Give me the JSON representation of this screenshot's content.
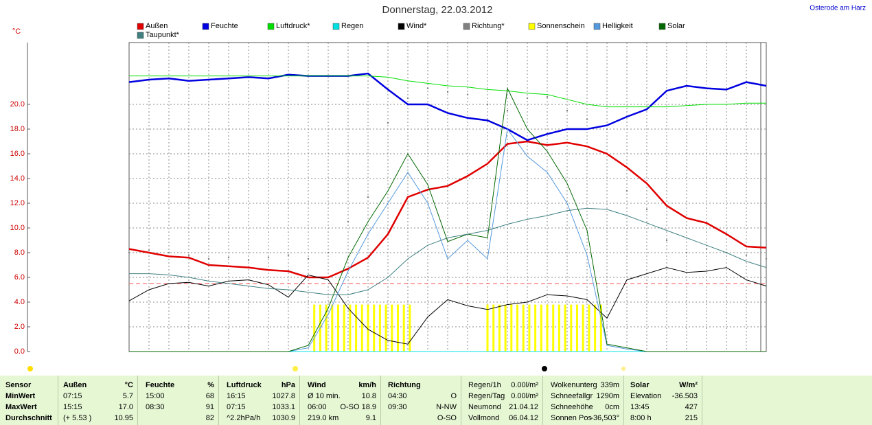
{
  "chart_data": {
    "type": "line",
    "title": "Donnerstag, 22.03.2012",
    "y_label": "°C",
    "link": "Osterode am Harz",
    "ylim": [
      0,
      25
    ],
    "xlim": [
      0,
      32
    ],
    "grid": true,
    "yticks": [
      {
        "value": 0,
        "label": "0.0"
      },
      {
        "value": 2,
        "label": "2.0"
      },
      {
        "value": 4,
        "label": "4.0"
      },
      {
        "value": 6,
        "label": "6.0"
      },
      {
        "value": 8,
        "label": "8.0"
      },
      {
        "value": 10,
        "label": "10.0"
      },
      {
        "value": 12,
        "label": "12.0"
      },
      {
        "value": 14,
        "label": "14.0"
      },
      {
        "value": 16,
        "label": "16.0"
      },
      {
        "value": 18,
        "label": "18.0"
      },
      {
        "value": 20,
        "label": "20.0"
      }
    ],
    "reference_line": {
      "value": 5.5,
      "color": "#ff5050"
    },
    "x": [
      0,
      1,
      2,
      3,
      4,
      5,
      6,
      7,
      8,
      9,
      10,
      11,
      12,
      13,
      14,
      15,
      16,
      17,
      18,
      19,
      20,
      21,
      22,
      23,
      24,
      25,
      26,
      27,
      28,
      29,
      30,
      31,
      32
    ],
    "series": [
      {
        "name": "Außen",
        "color": "#e00000",
        "mark": "line",
        "bold": true,
        "values": [
          8.3,
          8.0,
          7.7,
          7.6,
          7.0,
          6.9,
          6.8,
          6.6,
          6.5,
          6.0,
          6.0,
          6.7,
          7.6,
          9.5,
          12.5,
          13.1,
          13.4,
          14.2,
          15.2,
          16.8,
          17.0,
          16.7,
          16.9,
          16.6,
          16.0,
          14.9,
          13.6,
          11.8,
          10.8,
          10.4,
          9.5,
          8.5,
          8.4
        ]
      },
      {
        "name": "Feuchte",
        "color": "#0000e0",
        "mark": "line",
        "bold": true,
        "values": [
          21.8,
          22.0,
          22.1,
          21.9,
          22.0,
          22.1,
          22.2,
          22.1,
          22.4,
          22.3,
          22.3,
          22.3,
          22.5,
          21.2,
          20.0,
          20.0,
          19.3,
          18.9,
          18.7,
          18.0,
          17.1,
          17.6,
          18.0,
          18.0,
          18.3,
          19.0,
          19.6,
          21.1,
          21.5,
          21.3,
          21.2,
          21.8,
          21.5
        ]
      },
      {
        "name": "Luftdruck*",
        "color": "#00dd00",
        "mark": "line",
        "values": [
          22.3,
          22.3,
          22.3,
          22.3,
          22.3,
          22.3,
          22.3,
          22.3,
          22.3,
          22.3,
          22.3,
          22.3,
          22.3,
          22.2,
          21.9,
          21.7,
          21.5,
          21.4,
          21.2,
          21.1,
          20.9,
          20.8,
          20.4,
          20.0,
          19.8,
          19.8,
          19.8,
          19.8,
          19.9,
          20.0,
          20.0,
          20.1,
          20.1
        ]
      },
      {
        "name": "Regen",
        "color": "#00e0e0",
        "mark": "line",
        "values": [
          0,
          0,
          0,
          0,
          0,
          0,
          0,
          0,
          0,
          0,
          0,
          0,
          0,
          0,
          0,
          0,
          0,
          0,
          0,
          0,
          0,
          0,
          0,
          0,
          0,
          0,
          0,
          0,
          0,
          0,
          0,
          0,
          0
        ]
      },
      {
        "name": "Wind*",
        "color": "#000000",
        "mark": "line",
        "values": [
          4.1,
          5.0,
          5.5,
          5.6,
          5.3,
          5.7,
          5.8,
          5.4,
          4.4,
          6.2,
          5.8,
          3.5,
          1.8,
          0.9,
          0.6,
          2.8,
          4.2,
          3.7,
          3.4,
          3.8,
          4.0,
          4.6,
          4.5,
          4.2,
          2.7,
          5.8,
          6.3,
          6.8,
          6.4,
          6.5,
          6.8,
          5.8,
          5.3
        ]
      },
      {
        "name": "Richtung*",
        "color": "#808080",
        "mark": "dots",
        "values": [
          8.0,
          8.2,
          8.0,
          7.8,
          7.5,
          7.6,
          7.4,
          7.6,
          7.8,
          7.5,
          8.0,
          10.5,
          12.5,
          18.5,
          20.5,
          21.3,
          21.0,
          20.8,
          20.0,
          19.5,
          20.5,
          20.6,
          19.5,
          18.8,
          18.0,
          13.0,
          11.5,
          9.0,
          8.0,
          8.3,
          8.0,
          7.8,
          7.5
        ]
      },
      {
        "name": "Sonnenschein",
        "color": "#ffff00",
        "mark": "bars",
        "x": [
          9.3,
          9.6,
          9.9,
          10.2,
          10.5,
          10.8,
          11.1,
          11.4,
          11.7,
          12.0,
          12.3,
          12.6,
          12.9,
          13.2,
          13.5,
          13.8,
          14.1,
          18.0,
          18.3,
          18.6,
          18.9,
          19.2,
          19.5,
          19.8,
          20.1,
          20.4,
          20.7,
          21.0,
          21.3,
          21.6,
          21.9,
          22.2,
          22.5,
          22.8,
          23.1,
          23.4,
          23.7
        ],
        "values": [
          3.8,
          3.8,
          3.8,
          3.8,
          3.8,
          3.8,
          3.8,
          3.8,
          3.8,
          3.8,
          3.8,
          3.8,
          3.8,
          3.8,
          3.8,
          3.8,
          3.8,
          3.8,
          3.8,
          3.8,
          3.8,
          3.8,
          3.8,
          3.8,
          3.8,
          3.8,
          3.8,
          3.8,
          3.8,
          3.8,
          3.8,
          3.8,
          3.8,
          3.8,
          3.8,
          3.8,
          3.8
        ]
      },
      {
        "name": "Helligkeit",
        "color": "#5599dd",
        "mark": "line",
        "values": [
          0,
          0,
          0,
          0,
          0,
          0,
          0,
          0,
          0,
          0.3,
          3.0,
          6.5,
          9.5,
          12.0,
          14.5,
          12.0,
          7.5,
          9.0,
          7.5,
          18.0,
          15.8,
          14.5,
          12.0,
          7.8,
          0.5,
          0.2,
          0,
          0,
          0,
          0,
          0,
          0,
          0
        ]
      },
      {
        "name": "Solar",
        "color": "#006600",
        "mark": "line",
        "values": [
          0,
          0,
          0,
          0,
          0,
          0,
          0,
          0,
          0,
          0.5,
          3.5,
          7.6,
          10.5,
          13.0,
          16.0,
          13.5,
          8.9,
          9.5,
          9.2,
          21.3,
          18.0,
          16.2,
          13.6,
          9.8,
          0.6,
          0.3,
          0,
          0,
          0,
          0,
          0,
          0,
          0
        ]
      },
      {
        "name": "Taupunkt*",
        "color": "#408080",
        "mark": "line",
        "values": [
          6.3,
          6.3,
          6.2,
          6.0,
          5.7,
          5.5,
          5.3,
          5.1,
          5.0,
          4.8,
          4.6,
          4.6,
          5.0,
          6.0,
          7.5,
          8.6,
          9.2,
          9.5,
          9.8,
          10.3,
          10.7,
          11.0,
          11.4,
          11.6,
          11.5,
          11.0,
          10.4,
          9.8,
          9.2,
          8.6,
          8.0,
          7.3,
          6.8
        ]
      }
    ]
  },
  "table": {
    "groups": [
      {
        "rows": [
          {
            "left": "Sensor"
          },
          {
            "left": "MinWert"
          },
          {
            "left": "MaxWert"
          },
          {
            "left": "Durchschnitt"
          }
        ]
      },
      {
        "header": {
          "left": "Außen",
          "right": "°C"
        },
        "rows": [
          {
            "left": "07:15",
            "right": "5.7"
          },
          {
            "left": "15:15",
            "right": "17.0"
          },
          {
            "left": "(+ 5.53 )",
            "right": "10.95"
          }
        ]
      },
      {
        "header": {
          "left": "Feuchte",
          "right": "%"
        },
        "rows": [
          {
            "left": "15:00",
            "right": "68"
          },
          {
            "left": "08:30",
            "right": "91"
          },
          {
            "right": "82"
          }
        ]
      },
      {
        "header": {
          "left": "Luftdruck",
          "right": "hPa"
        },
        "rows": [
          {
            "left": "16:15",
            "right": "1027.8"
          },
          {
            "left": "07:15",
            "right": "1033.1"
          },
          {
            "left": "^2.2hPa/h",
            "right": "1030.9"
          }
        ]
      },
      {
        "header": {
          "left": "Wind",
          "right": "km/h"
        },
        "rows": [
          {
            "left": "Ø 10 min.",
            "right": "10.8"
          },
          {
            "left": "06:00",
            "right": "O-SO 18.9"
          },
          {
            "left": "219.0 km",
            "right": "9.1"
          }
        ]
      },
      {
        "header": {
          "left": "Richtung"
        },
        "rows": [
          {
            "left": "04:30",
            "right": "O"
          },
          {
            "left": "09:30",
            "right": "N-NW"
          },
          {
            "right": "O-SO"
          }
        ]
      },
      {
        "rows": [
          {
            "left": "Regen/1h",
            "right": "0.00l/m²"
          },
          {
            "left": "Regen/Tag",
            "right": "0.00l/m²"
          },
          {
            "left": "Neumond",
            "right": "21.04.12"
          },
          {
            "left": "Vollmond",
            "right": "06.04.12"
          }
        ]
      },
      {
        "rows": [
          {
            "left": "Wolkenunterg",
            "right": "339m"
          },
          {
            "left": "Schneefallgr",
            "right": "1290m"
          },
          {
            "left": "Schneehöhe",
            "right": "0cm"
          },
          {
            "left": "Sonnen Pos",
            "right": "-36,503°"
          }
        ]
      },
      {
        "header": {
          "left": "Solar",
          "right": "W/m²"
        },
        "rows": [
          {
            "left": "Elevation",
            "right": "-36.503"
          },
          {
            "left": "13:45",
            "right": "427"
          },
          {
            "left": "8:00 h",
            "right": "215"
          }
        ]
      }
    ]
  }
}
